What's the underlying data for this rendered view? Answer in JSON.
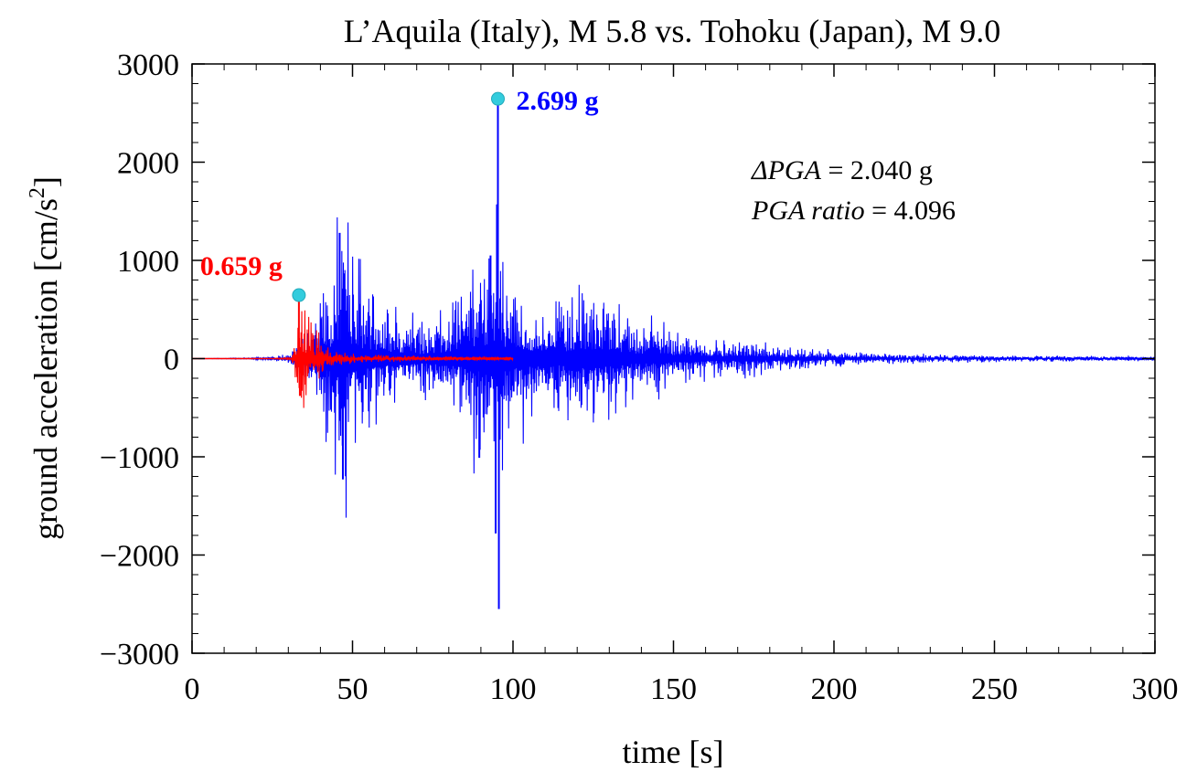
{
  "chart_data": {
    "type": "line",
    "title": "L’Aquila (Italy), M 5.8 vs. Tohoku (Japan), M 9.0",
    "xlabel": "time [s]",
    "ylabel_main": "ground acceleration [cm/s",
    "ylabel_sup": "2",
    "ylabel_close": "]",
    "xlim": [
      0,
      300
    ],
    "ylim": [
      -3000,
      3000
    ],
    "x_ticks": [
      0,
      50,
      100,
      150,
      200,
      250,
      300
    ],
    "x_tick_labels": [
      "0",
      "50",
      "100",
      "150",
      "200",
      "250",
      "300"
    ],
    "y_ticks": [
      -3000,
      -2000,
      -1000,
      0,
      1000,
      2000,
      3000
    ],
    "y_tick_labels": [
      "−3000",
      "−2000",
      "−1000",
      "0",
      "1000",
      "2000",
      "3000"
    ],
    "grid": false,
    "series": [
      {
        "key": "tohoku",
        "color": "#0000ff",
        "envelope": [
          [
            0,
            0
          ],
          [
            18,
            5
          ],
          [
            25,
            15
          ],
          [
            30,
            40
          ],
          [
            33,
            100
          ],
          [
            38,
            300
          ],
          [
            41,
            600
          ],
          [
            44,
            900
          ],
          [
            46,
            1250
          ],
          [
            48,
            1100
          ],
          [
            50,
            850
          ],
          [
            53,
            700
          ],
          [
            56,
            600
          ],
          [
            60,
            500
          ],
          [
            65,
            380
          ],
          [
            70,
            300
          ],
          [
            75,
            330
          ],
          [
            80,
            450
          ],
          [
            85,
            600
          ],
          [
            88,
            800
          ],
          [
            91,
            900
          ],
          [
            94,
            1000
          ],
          [
            96,
            800
          ],
          [
            99,
            700
          ],
          [
            103,
            600
          ],
          [
            108,
            500
          ],
          [
            112,
            420
          ],
          [
            118,
            500
          ],
          [
            122,
            580
          ],
          [
            126,
            620
          ],
          [
            130,
            520
          ],
          [
            135,
            400
          ],
          [
            140,
            300
          ],
          [
            145,
            320
          ],
          [
            150,
            230
          ],
          [
            155,
            220
          ],
          [
            162,
            150
          ],
          [
            168,
            140
          ],
          [
            172,
            170
          ],
          [
            178,
            130
          ],
          [
            185,
            100
          ],
          [
            195,
            80
          ],
          [
            205,
            55
          ],
          [
            220,
            40
          ],
          [
            240,
            30
          ],
          [
            260,
            25
          ],
          [
            280,
            22
          ],
          [
            300,
            18
          ]
        ],
        "spikes": [
          {
            "t": 95.3,
            "a": 2645
          },
          {
            "t": 95.6,
            "a": -2550
          },
          {
            "t": 95.0,
            "a": 1570
          },
          {
            "t": 94.6,
            "a": -1780
          },
          {
            "t": 46.0,
            "a": 1280
          },
          {
            "t": 47.0,
            "a": -1230
          },
          {
            "t": 89.5,
            "a": -1010
          },
          {
            "t": 93.0,
            "a": 1050
          }
        ]
      },
      {
        "key": "laquila",
        "color": "#ff0000",
        "envelope": [
          [
            0,
            0
          ],
          [
            25,
            0
          ],
          [
            31,
            10
          ],
          [
            32,
            150
          ],
          [
            33,
            350
          ],
          [
            34,
            450
          ],
          [
            35,
            380
          ],
          [
            37,
            280
          ],
          [
            39,
            200
          ],
          [
            41,
            120
          ],
          [
            44,
            70
          ],
          [
            50,
            40
          ],
          [
            60,
            28
          ],
          [
            75,
            20
          ],
          [
            90,
            15
          ],
          [
            100,
            10
          ]
        ],
        "spikes": [
          {
            "t": 33.3,
            "a": 646
          },
          {
            "t": 33.6,
            "a": -380
          }
        ]
      }
    ],
    "peak_markers": [
      {
        "x": 33.3,
        "y": 646,
        "label": "0.659 g",
        "color": "#ff0000",
        "label_pos": "left"
      },
      {
        "x": 95.3,
        "y": 2645,
        "label": "2.699 g",
        "color": "#0000ff",
        "label_pos": "right"
      }
    ],
    "marker_color": "#33ccdd",
    "annotations": {
      "dpga_name": "ΔPGA",
      "dpga_value": " = 2.040 g",
      "ratio_name": "PGA ratio",
      "ratio_value": " = 4.096"
    }
  }
}
